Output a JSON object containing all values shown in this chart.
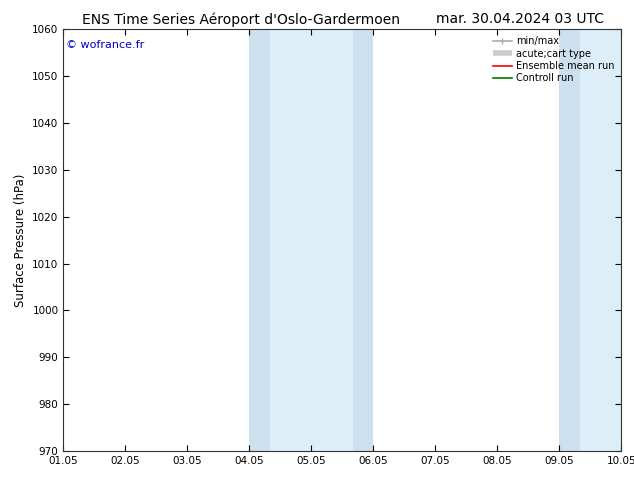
{
  "title_left": "ENS Time Series Aéroport d'Oslo-Gardermoen",
  "title_right": "mar. 30.04.2024 03 UTC",
  "ylabel": "Surface Pressure (hPa)",
  "ylim": [
    970,
    1060
  ],
  "yticks": [
    970,
    980,
    990,
    1000,
    1010,
    1020,
    1030,
    1040,
    1050,
    1060
  ],
  "xlim": [
    0,
    9
  ],
  "xtick_labels": [
    "01.05",
    "02.05",
    "03.05",
    "04.05",
    "05.05",
    "06.05",
    "07.05",
    "08.05",
    "09.05",
    "10.05"
  ],
  "xtick_positions": [
    0,
    1,
    2,
    3,
    4,
    5,
    6,
    7,
    8,
    9
  ],
  "watermark": "© wofrance.fr",
  "watermark_color": "#0000cc",
  "shaded_bands": [
    {
      "xmin": 3.0,
      "xmax": 3.33,
      "color": "#cce0f0"
    },
    {
      "xmin": 3.33,
      "xmax": 4.67,
      "color": "#deeef9"
    },
    {
      "xmin": 4.67,
      "xmax": 5.0,
      "color": "#cce0f0"
    },
    {
      "xmin": 8.0,
      "xmax": 8.33,
      "color": "#cce0f0"
    },
    {
      "xmin": 8.33,
      "xmax": 9.67,
      "color": "#deeef9"
    },
    {
      "xmin": 9.67,
      "xmax": 10.0,
      "color": "#cce0f0"
    }
  ],
  "legend_entries": [
    {
      "label": "min/max",
      "color": "#aaaaaa",
      "lw": 1.2,
      "style": "caps"
    },
    {
      "label": "acute;cart type",
      "color": "#cccccc",
      "lw": 4,
      "style": "thick"
    },
    {
      "label": "Ensemble mean run",
      "color": "#ff0000",
      "lw": 1.2,
      "style": "line"
    },
    {
      "label": "Controll run",
      "color": "#007700",
      "lw": 1.2,
      "style": "line"
    }
  ],
  "bg_color": "#ffffff",
  "title_fontsize": 10,
  "tick_fontsize": 7.5,
  "ylabel_fontsize": 8.5
}
